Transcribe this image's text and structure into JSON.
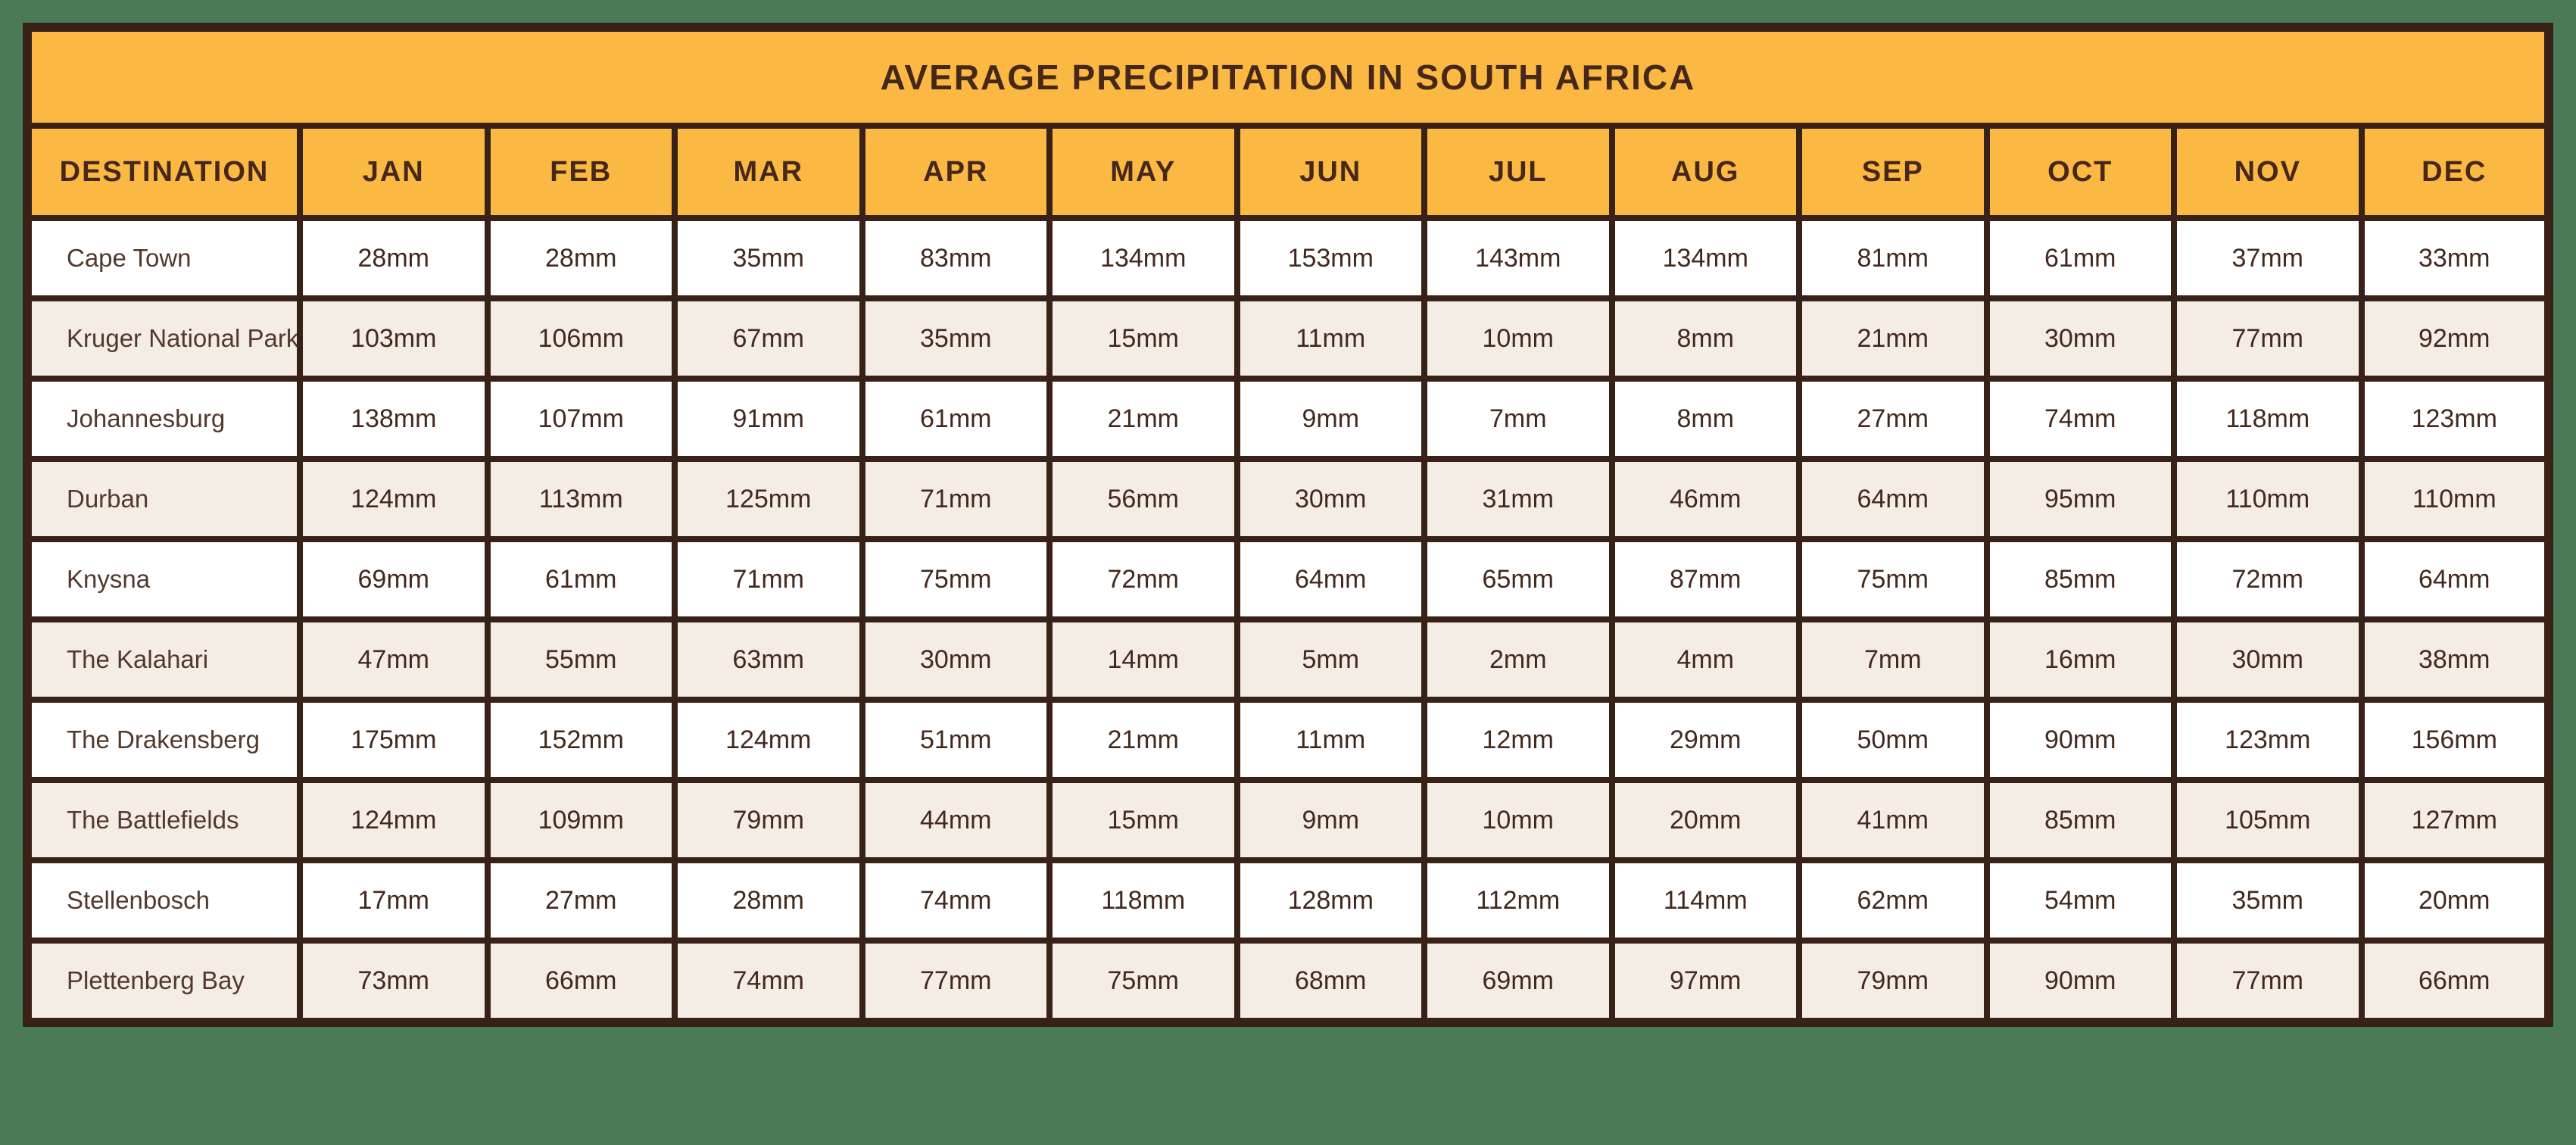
{
  "page": {
    "background_color": "#4b7a59"
  },
  "colors": {
    "header_background": "#fbb843",
    "border": "#382217",
    "header_text": "#45281a",
    "cell_text": "#43291d",
    "alt_row_background": "#f3ede6",
    "row_background": "#ffffff"
  },
  "chart_data": {
    "type": "table",
    "title": "AVERAGE PRECIPITATION IN SOUTH AFRICA",
    "unit": "mm",
    "columns": [
      "DESTINATION",
      "JAN",
      "FEB",
      "MAR",
      "APR",
      "MAY",
      "JUN",
      "JUL",
      "AUG",
      "SEP",
      "OCT",
      "NOV",
      "DEC"
    ],
    "rows": [
      {
        "destination": "Cape Town",
        "values": [
          28,
          28,
          35,
          83,
          134,
          153,
          143,
          134,
          81,
          61,
          37,
          33
        ]
      },
      {
        "destination": "Kruger National Park",
        "values": [
          103,
          106,
          67,
          35,
          15,
          11,
          10,
          8,
          21,
          30,
          77,
          92
        ]
      },
      {
        "destination": "Johannesburg",
        "values": [
          138,
          107,
          91,
          61,
          21,
          9,
          7,
          8,
          27,
          74,
          118,
          123
        ]
      },
      {
        "destination": "Durban",
        "values": [
          124,
          113,
          125,
          71,
          56,
          30,
          31,
          46,
          64,
          95,
          110,
          110
        ]
      },
      {
        "destination": "Knysna",
        "values": [
          69,
          61,
          71,
          75,
          72,
          64,
          65,
          87,
          75,
          85,
          72,
          64
        ]
      },
      {
        "destination": "The Kalahari",
        "values": [
          47,
          55,
          63,
          30,
          14,
          5,
          2,
          4,
          7,
          16,
          30,
          38
        ]
      },
      {
        "destination": "The Drakensberg",
        "values": [
          175,
          152,
          124,
          51,
          21,
          11,
          12,
          29,
          50,
          90,
          123,
          156
        ]
      },
      {
        "destination": "The Battlefields",
        "values": [
          124,
          109,
          79,
          44,
          15,
          9,
          10,
          20,
          41,
          85,
          105,
          127
        ]
      },
      {
        "destination": "Stellenbosch",
        "values": [
          17,
          27,
          28,
          74,
          118,
          128,
          112,
          114,
          62,
          54,
          35,
          20
        ]
      },
      {
        "destination": "Plettenberg Bay",
        "values": [
          73,
          66,
          74,
          77,
          75,
          68,
          69,
          97,
          79,
          90,
          77,
          66
        ]
      }
    ]
  }
}
